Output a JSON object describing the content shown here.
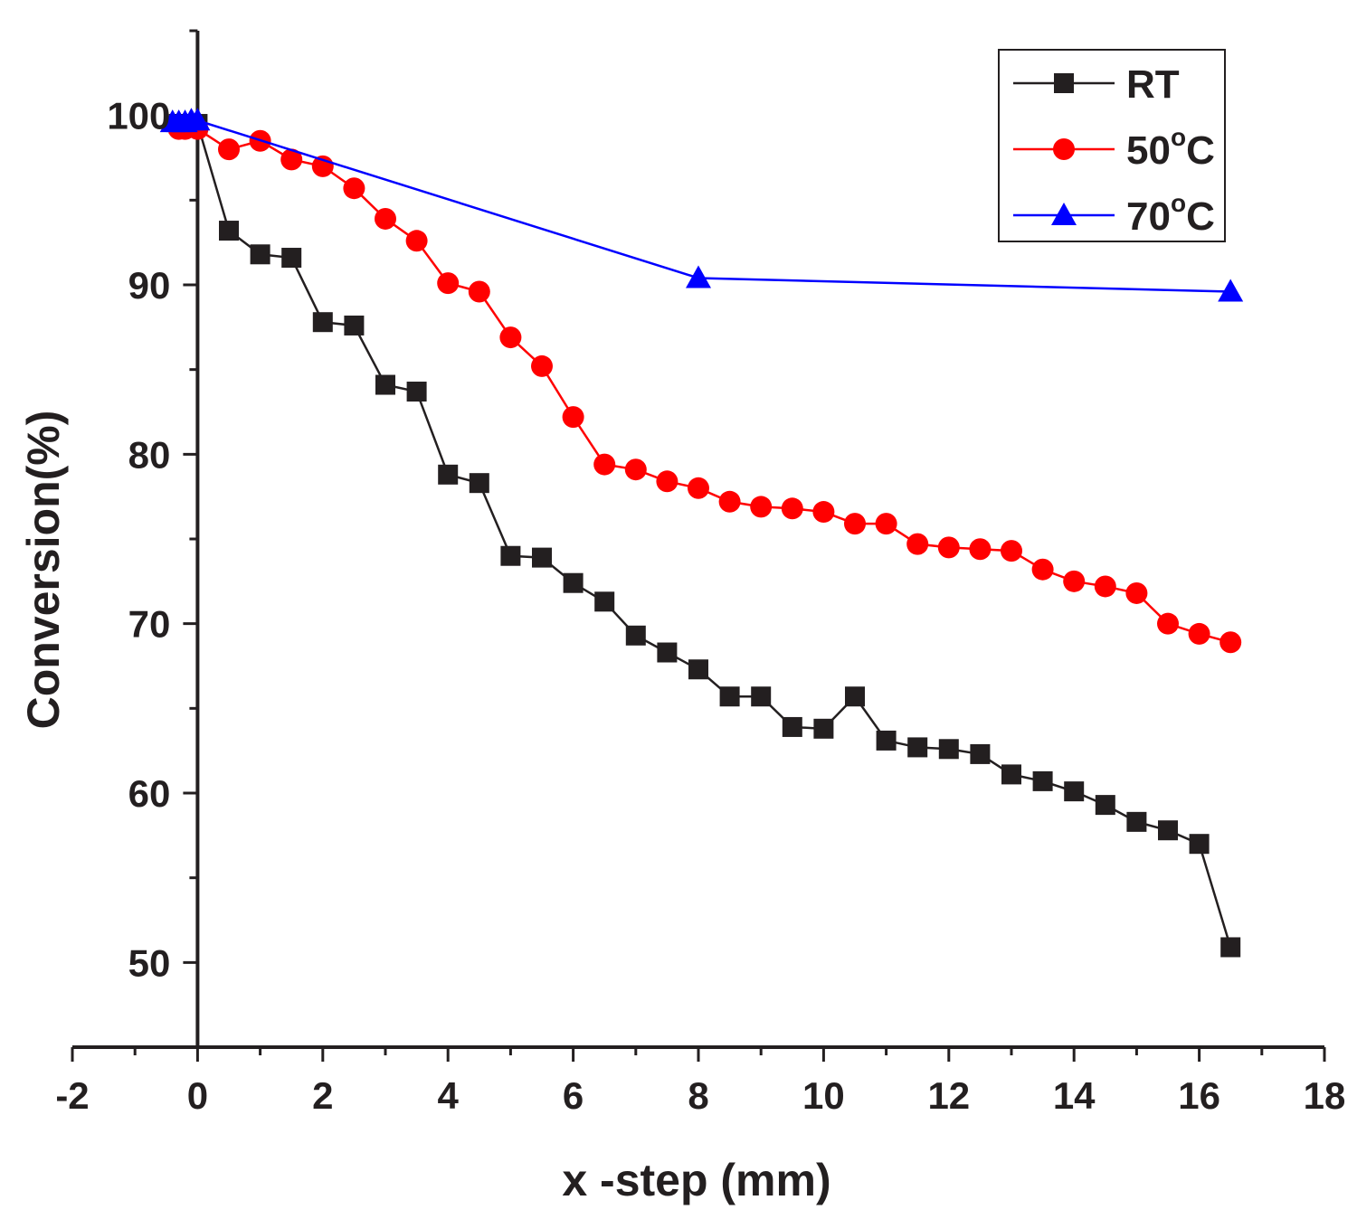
{
  "chart_data": {
    "type": "line",
    "title": "",
    "xlabel": "x -step (mm)",
    "ylabel": "Conversion(%)",
    "xlim": [
      -2,
      18
    ],
    "ylim": [
      45,
      105
    ],
    "x_ticks": [
      -2,
      0,
      2,
      4,
      6,
      8,
      10,
      12,
      14,
      16,
      18
    ],
    "x_tick_labels": [
      "-2",
      "0",
      "2",
      "4",
      "6",
      "8",
      "10",
      "12",
      "14",
      "16",
      "18"
    ],
    "y_ticks": [
      50,
      60,
      70,
      80,
      90,
      100
    ],
    "y_tick_labels": [
      "50",
      "60",
      "70",
      "80",
      "90",
      "100"
    ],
    "grid": false,
    "legend_position": "top-right",
    "series": [
      {
        "name": "RT",
        "label_main": "RT",
        "label_sup": "",
        "label_tail": "",
        "color": "#231f20",
        "marker": "square",
        "x": [
          -0.3,
          -0.2,
          -0.1,
          0,
          0.5,
          1,
          1.5,
          2,
          2.5,
          3,
          3.5,
          4,
          4.5,
          5,
          5.5,
          6,
          6.5,
          7,
          7.5,
          8,
          8.5,
          9,
          9.5,
          10,
          10.5,
          11,
          11.5,
          12,
          12.5,
          13,
          13.5,
          14,
          14.5,
          15,
          15.5,
          16,
          16.5
        ],
        "y": [
          99.5,
          99.5,
          99.5,
          99.5,
          93.2,
          91.8,
          91.6,
          87.8,
          87.6,
          84.1,
          83.7,
          78.8,
          78.3,
          74.0,
          73.9,
          72.4,
          71.3,
          69.3,
          68.3,
          67.3,
          65.7,
          65.7,
          63.9,
          63.8,
          65.7,
          63.1,
          62.7,
          62.6,
          62.3,
          61.1,
          60.7,
          60.1,
          59.3,
          58.3,
          57.8,
          57.0,
          50.9
        ]
      },
      {
        "name": "50°C",
        "label_main": "50",
        "label_sup": "o",
        "label_tail": "C",
        "color": "#ff0000",
        "marker": "circle",
        "x": [
          -0.3,
          -0.2,
          0,
          0.5,
          1,
          1.5,
          2,
          2.5,
          3,
          3.5,
          4,
          4.5,
          5,
          5.5,
          6,
          6.5,
          7,
          7.5,
          8,
          8.5,
          9,
          9.5,
          10,
          10.5,
          11,
          11.5,
          12,
          12.5,
          13,
          13.5,
          14,
          14.5,
          15,
          15.5,
          16,
          16.5
        ],
        "y": [
          99.2,
          99.2,
          99.2,
          98.0,
          98.5,
          97.4,
          97.0,
          95.7,
          93.9,
          92.6,
          90.1,
          89.6,
          86.9,
          85.2,
          82.2,
          79.4,
          79.1,
          78.4,
          78.0,
          77.2,
          76.9,
          76.8,
          76.6,
          75.9,
          75.9,
          74.7,
          74.5,
          74.4,
          74.3,
          73.2,
          72.5,
          72.2,
          71.8,
          70.0,
          69.4,
          68.9
        ]
      },
      {
        "name": "70°C",
        "label_main": "70",
        "label_sup": "o",
        "label_tail": "C",
        "color": "#0000ff",
        "marker": "triangle",
        "x": [
          -0.4,
          -0.3,
          -0.2,
          -0.1,
          0,
          8,
          16.5
        ],
        "y": [
          99.6,
          99.6,
          99.6,
          99.7,
          99.7,
          90.4,
          89.6
        ]
      }
    ]
  }
}
